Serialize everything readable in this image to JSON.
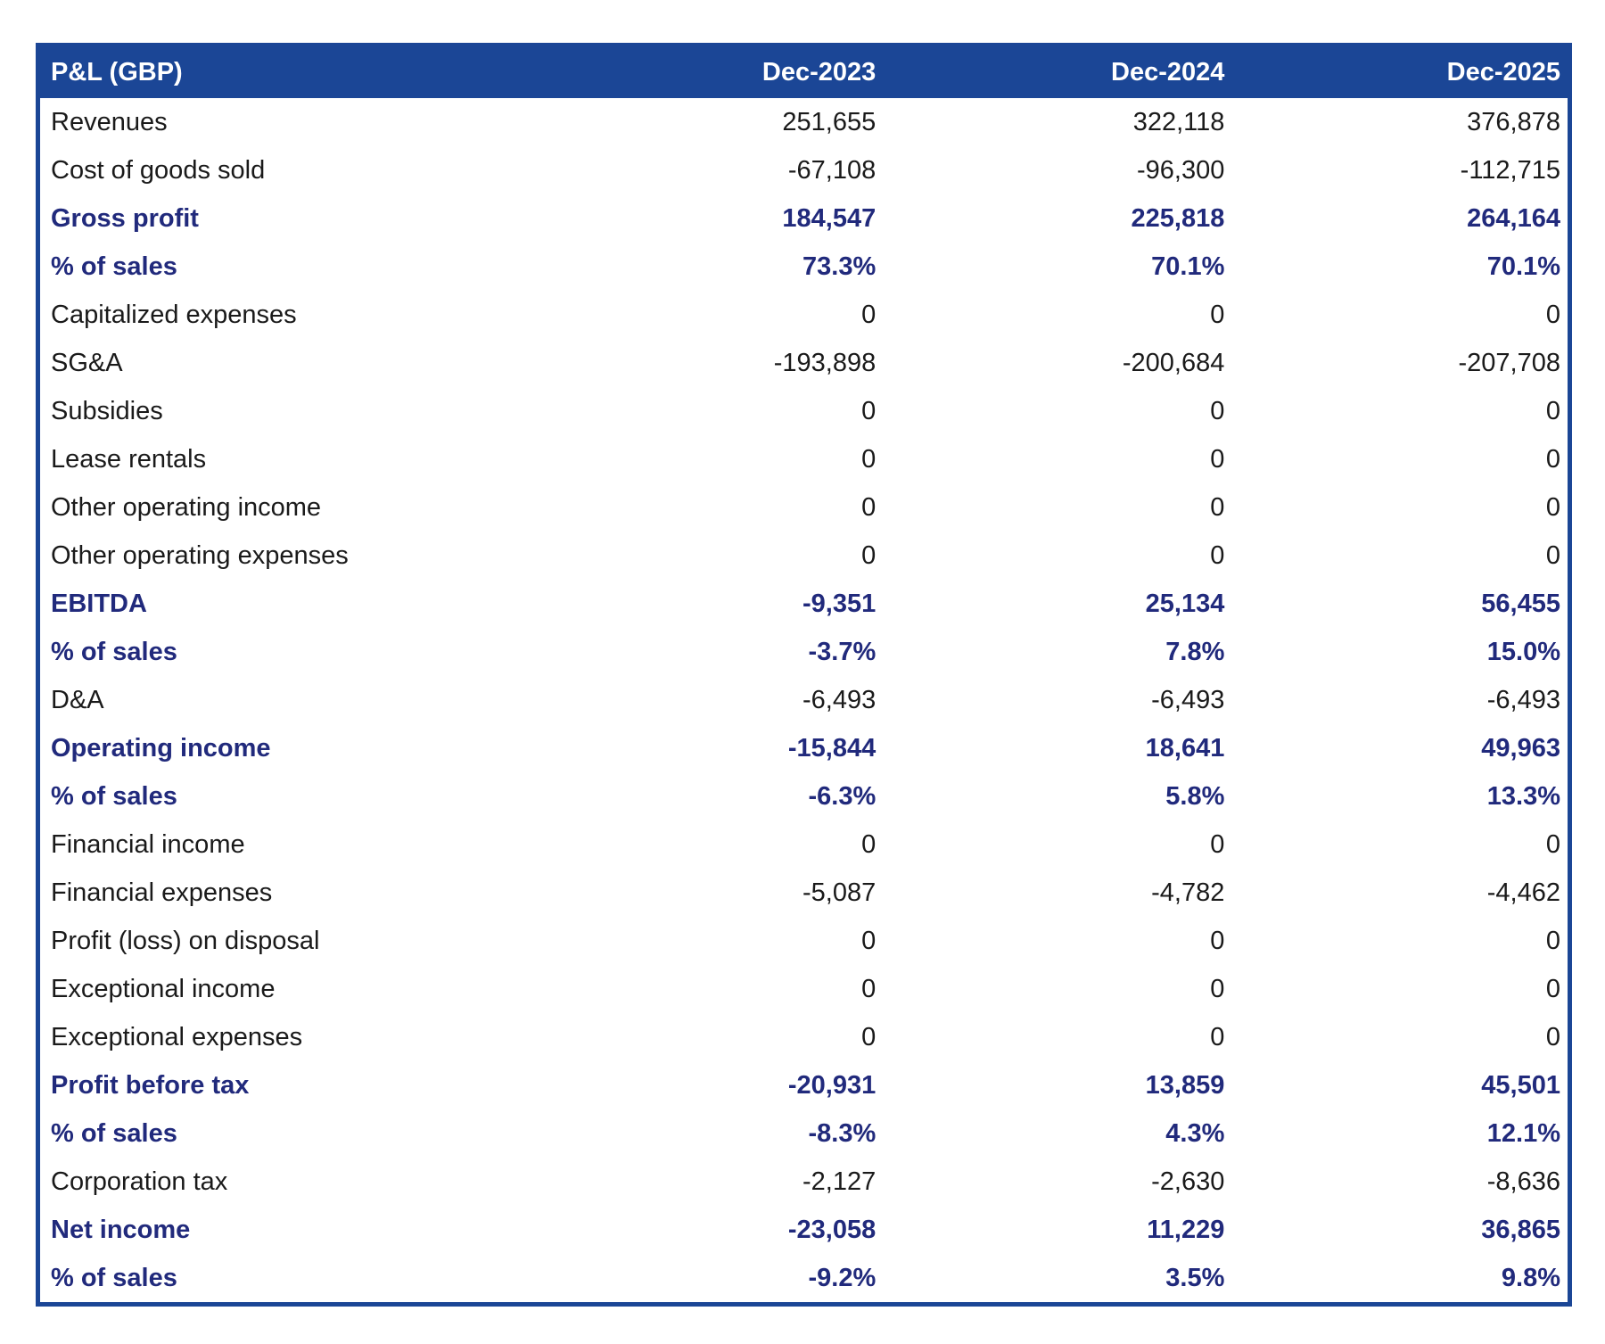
{
  "table": {
    "title": "P&L (GBP)",
    "columns": [
      "Dec-2023",
      "Dec-2024",
      "Dec-2025"
    ],
    "rows": [
      {
        "label": "Revenues",
        "bold": false,
        "values": [
          "251,655",
          "322,118",
          "376,878"
        ]
      },
      {
        "label": "Cost of goods sold",
        "bold": false,
        "values": [
          "-67,108",
          "-96,300",
          "-112,715"
        ]
      },
      {
        "label": "Gross profit",
        "bold": true,
        "values": [
          "184,547",
          "225,818",
          "264,164"
        ]
      },
      {
        "label": "% of sales",
        "bold": true,
        "values": [
          "73.3%",
          "70.1%",
          "70.1%"
        ]
      },
      {
        "label": "Capitalized expenses",
        "bold": false,
        "values": [
          "0",
          "0",
          "0"
        ]
      },
      {
        "label": "SG&A",
        "bold": false,
        "values": [
          "-193,898",
          "-200,684",
          "-207,708"
        ]
      },
      {
        "label": "Subsidies",
        "bold": false,
        "values": [
          "0",
          "0",
          "0"
        ]
      },
      {
        "label": "Lease rentals",
        "bold": false,
        "values": [
          "0",
          "0",
          "0"
        ]
      },
      {
        "label": "Other operating income",
        "bold": false,
        "values": [
          "0",
          "0",
          "0"
        ]
      },
      {
        "label": "Other operating expenses",
        "bold": false,
        "values": [
          "0",
          "0",
          "0"
        ]
      },
      {
        "label": "EBITDA",
        "bold": true,
        "values": [
          "-9,351",
          "25,134",
          "56,455"
        ]
      },
      {
        "label": "% of sales",
        "bold": true,
        "values": [
          "-3.7%",
          "7.8%",
          "15.0%"
        ]
      },
      {
        "label": "D&A",
        "bold": false,
        "values": [
          "-6,493",
          "-6,493",
          "-6,493"
        ]
      },
      {
        "label": "Operating income",
        "bold": true,
        "values": [
          "-15,844",
          "18,641",
          "49,963"
        ]
      },
      {
        "label": "% of sales",
        "bold": true,
        "values": [
          "-6.3%",
          "5.8%",
          "13.3%"
        ]
      },
      {
        "label": "Financial income",
        "bold": false,
        "values": [
          "0",
          "0",
          "0"
        ]
      },
      {
        "label": "Financial expenses",
        "bold": false,
        "values": [
          "-5,087",
          "-4,782",
          "-4,462"
        ]
      },
      {
        "label": "Profit (loss) on disposal",
        "bold": false,
        "values": [
          "0",
          "0",
          "0"
        ]
      },
      {
        "label": "Exceptional income",
        "bold": false,
        "values": [
          "0",
          "0",
          "0"
        ]
      },
      {
        "label": "Exceptional expenses",
        "bold": false,
        "values": [
          "0",
          "0",
          "0"
        ]
      },
      {
        "label": "Profit before tax",
        "bold": true,
        "values": [
          "-20,931",
          "13,859",
          "45,501"
        ]
      },
      {
        "label": "% of sales",
        "bold": true,
        "values": [
          "-8.3%",
          "4.3%",
          "12.1%"
        ]
      },
      {
        "label": "Corporation tax",
        "bold": false,
        "values": [
          "-2,127",
          "-2,630",
          "-8,636"
        ]
      },
      {
        "label": "Net income",
        "bold": true,
        "values": [
          "-23,058",
          "11,229",
          "36,865"
        ]
      },
      {
        "label": "% of sales",
        "bold": true,
        "values": [
          "-9.2%",
          "3.5%",
          "9.8%"
        ]
      }
    ]
  },
  "colors": {
    "header_bg": "#1B4696",
    "border": "#1B4696",
    "header_text": "#FFFFFF",
    "bold_text": "#212A7C",
    "normal_text": "#1A1A1A"
  },
  "chart_data": {
    "type": "table",
    "title": "P&L (GBP)",
    "categories": [
      "Dec-2023",
      "Dec-2024",
      "Dec-2025"
    ],
    "series": [
      {
        "name": "Revenues",
        "unit": "GBP",
        "values": [
          251655,
          322118,
          376878
        ]
      },
      {
        "name": "Cost of goods sold",
        "unit": "GBP",
        "values": [
          -67108,
          -96300,
          -112715
        ]
      },
      {
        "name": "Gross profit",
        "unit": "GBP",
        "values": [
          184547,
          225818,
          264164
        ]
      },
      {
        "name": "Gross profit % of sales",
        "unit": "%",
        "values": [
          73.3,
          70.1,
          70.1
        ]
      },
      {
        "name": "Capitalized expenses",
        "unit": "GBP",
        "values": [
          0,
          0,
          0
        ]
      },
      {
        "name": "SG&A",
        "unit": "GBP",
        "values": [
          -193898,
          -200684,
          -207708
        ]
      },
      {
        "name": "Subsidies",
        "unit": "GBP",
        "values": [
          0,
          0,
          0
        ]
      },
      {
        "name": "Lease rentals",
        "unit": "GBP",
        "values": [
          0,
          0,
          0
        ]
      },
      {
        "name": "Other operating income",
        "unit": "GBP",
        "values": [
          0,
          0,
          0
        ]
      },
      {
        "name": "Other operating expenses",
        "unit": "GBP",
        "values": [
          0,
          0,
          0
        ]
      },
      {
        "name": "EBITDA",
        "unit": "GBP",
        "values": [
          -9351,
          25134,
          56455
        ]
      },
      {
        "name": "EBITDA % of sales",
        "unit": "%",
        "values": [
          -3.7,
          7.8,
          15.0
        ]
      },
      {
        "name": "D&A",
        "unit": "GBP",
        "values": [
          -6493,
          -6493,
          -6493
        ]
      },
      {
        "name": "Operating income",
        "unit": "GBP",
        "values": [
          -15844,
          18641,
          49963
        ]
      },
      {
        "name": "Operating income % of sales",
        "unit": "%",
        "values": [
          -6.3,
          5.8,
          13.3
        ]
      },
      {
        "name": "Financial income",
        "unit": "GBP",
        "values": [
          0,
          0,
          0
        ]
      },
      {
        "name": "Financial expenses",
        "unit": "GBP",
        "values": [
          -5087,
          -4782,
          -4462
        ]
      },
      {
        "name": "Profit (loss) on disposal",
        "unit": "GBP",
        "values": [
          0,
          0,
          0
        ]
      },
      {
        "name": "Exceptional income",
        "unit": "GBP",
        "values": [
          0,
          0,
          0
        ]
      },
      {
        "name": "Exceptional expenses",
        "unit": "GBP",
        "values": [
          0,
          0,
          0
        ]
      },
      {
        "name": "Profit before tax",
        "unit": "GBP",
        "values": [
          -20931,
          13859,
          45501
        ]
      },
      {
        "name": "Profit before tax % of sales",
        "unit": "%",
        "values": [
          -8.3,
          4.3,
          12.1
        ]
      },
      {
        "name": "Corporation tax",
        "unit": "GBP",
        "values": [
          -2127,
          -2630,
          -8636
        ]
      },
      {
        "name": "Net income",
        "unit": "GBP",
        "values": [
          -23058,
          11229,
          36865
        ]
      },
      {
        "name": "Net income % of sales",
        "unit": "%",
        "values": [
          -9.2,
          3.5,
          9.8
        ]
      }
    ]
  }
}
